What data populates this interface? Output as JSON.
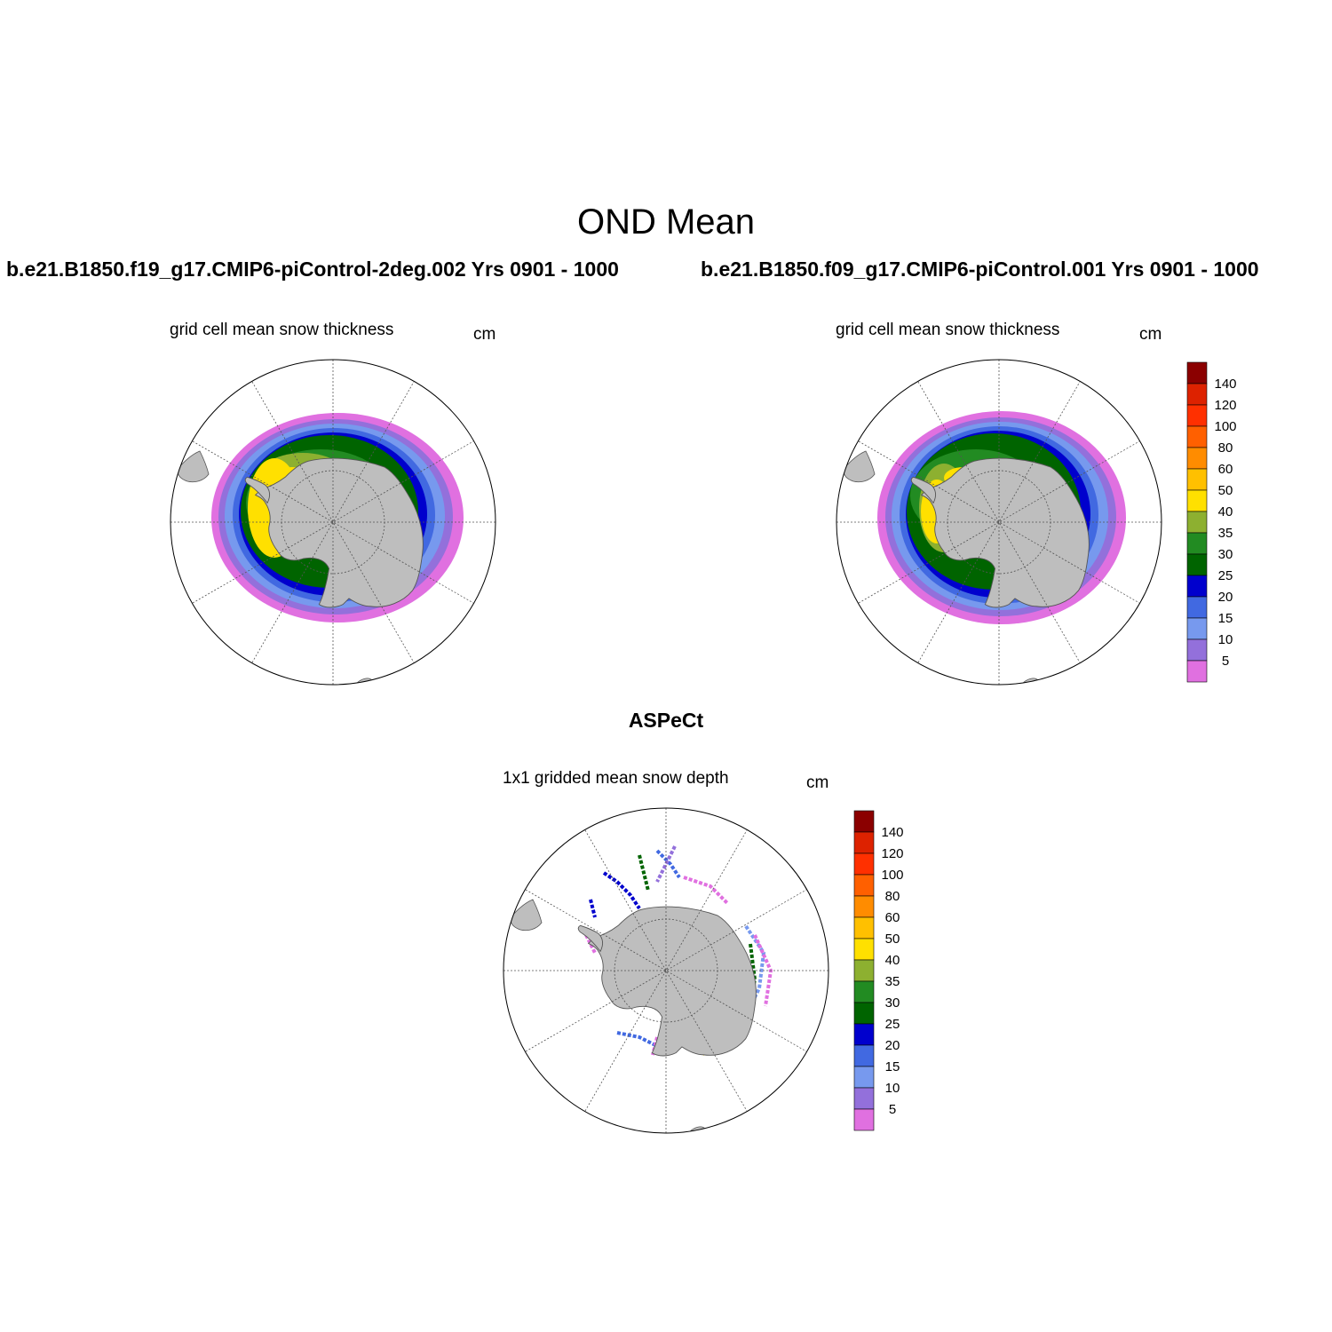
{
  "title": "OND Mean",
  "panels": [
    {
      "case": "b.e21.B1850.f19_g17.CMIP6-piControl-2deg.002  Yrs 0901 - 1000",
      "variable": "grid cell mean snow thickness",
      "units": "cm"
    },
    {
      "case": "b.e21.B1850.f09_g17.CMIP6-piControl.001  Yrs 0901 - 1000",
      "variable": "grid cell mean snow thickness",
      "units": "cm"
    },
    {
      "case": "ASPeCt",
      "variable": "1x1 gridded mean snow depth",
      "units": "cm"
    }
  ],
  "colorbar": {
    "levels": [
      "5",
      "10",
      "15",
      "20",
      "25",
      "30",
      "35",
      "40",
      "50",
      "60",
      "80",
      "100",
      "120",
      "140"
    ],
    "colors": [
      "#e070e0",
      "#9370db",
      "#7799ee",
      "#4169e1",
      "#0000cd",
      "#006400",
      "#228b22",
      "#8db030",
      "#ffe000",
      "#ffc000",
      "#ff8c00",
      "#ff6000",
      "#ff3000",
      "#dd2200",
      "#8b0000"
    ]
  },
  "map": {
    "land_color": "#bebebe",
    "projection": "south polar stereographic"
  }
}
